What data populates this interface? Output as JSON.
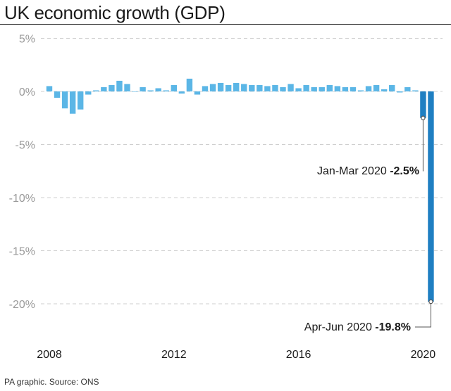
{
  "page": {
    "title": "UK economic growth (GDP)",
    "source": "PA graphic. Source: ONS"
  },
  "chart_data": {
    "type": "bar",
    "title": "UK economic growth (GDP)",
    "xlabel": "",
    "ylabel": "",
    "ylim": [
      -22.5,
      5
    ],
    "yticks": [
      5,
      0,
      -5,
      -10,
      -15,
      -20
    ],
    "ytick_labels": [
      "5%",
      "0%",
      "-5%",
      "-10%",
      "-15%",
      "-20%"
    ],
    "xtick_labels": [
      "2008",
      "2012",
      "2016",
      "2020"
    ],
    "xtick_positions": [
      "2008 Q1",
      "2012 Q1",
      "2016 Q1",
      "2020 Q1"
    ],
    "categories": [
      "2008 Q1",
      "2008 Q2",
      "2008 Q3",
      "2008 Q4",
      "2009 Q1",
      "2009 Q2",
      "2009 Q3",
      "2009 Q4",
      "2010 Q1",
      "2010 Q2",
      "2010 Q3",
      "2010 Q4",
      "2011 Q1",
      "2011 Q2",
      "2011 Q3",
      "2011 Q4",
      "2012 Q1",
      "2012 Q2",
      "2012 Q3",
      "2012 Q4",
      "2013 Q1",
      "2013 Q2",
      "2013 Q3",
      "2013 Q4",
      "2014 Q1",
      "2014 Q2",
      "2014 Q3",
      "2014 Q4",
      "2015 Q1",
      "2015 Q2",
      "2015 Q3",
      "2015 Q4",
      "2016 Q1",
      "2016 Q2",
      "2016 Q3",
      "2016 Q4",
      "2017 Q1",
      "2017 Q2",
      "2017 Q3",
      "2017 Q4",
      "2018 Q1",
      "2018 Q2",
      "2018 Q3",
      "2018 Q4",
      "2019 Q1",
      "2019 Q2",
      "2019 Q3",
      "2019 Q4",
      "2020 Q1",
      "2020 Q2"
    ],
    "values": [
      0.5,
      -0.6,
      -1.6,
      -2.1,
      -1.7,
      -0.3,
      0.1,
      0.4,
      0.6,
      1.0,
      0.7,
      0.0,
      0.4,
      0.1,
      0.3,
      0.1,
      0.6,
      -0.2,
      1.2,
      -0.3,
      0.5,
      0.7,
      0.8,
      0.6,
      0.8,
      0.7,
      0.6,
      0.6,
      0.5,
      0.6,
      0.4,
      0.7,
      0.3,
      0.6,
      0.4,
      0.4,
      0.6,
      0.5,
      0.4,
      0.4,
      0.1,
      0.5,
      0.6,
      0.2,
      0.6,
      -0.1,
      0.4,
      0.1,
      -2.5,
      -19.8
    ],
    "highlight_indices": [
      48,
      49
    ],
    "colors": {
      "normal": "#5bb6e6",
      "highlight": "#1f7fc2",
      "grid": "#cfcfcf",
      "tick": "#9a9a9a"
    },
    "annotations": [
      {
        "index": 48,
        "label": "Jan-Mar 2020 ",
        "value_label": "-2.5%"
      },
      {
        "index": 49,
        "label": "Apr-Jun 2020 ",
        "value_label": "-19.8%"
      }
    ]
  }
}
